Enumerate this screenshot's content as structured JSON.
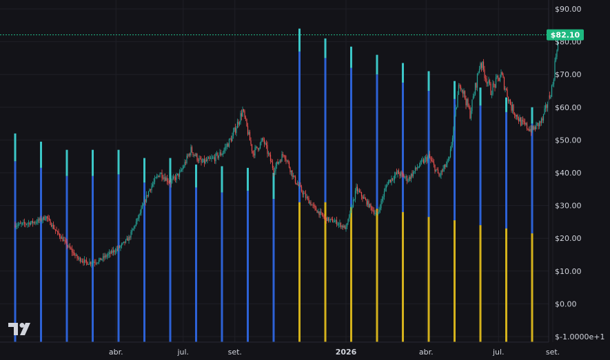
{
  "chart_data": {
    "type": "bar",
    "title": "",
    "xlabel": "",
    "ylabel": "",
    "ylim": [
      -10,
      90
    ],
    "y_ticks": [
      -10,
      0,
      10,
      20,
      30,
      40,
      50,
      60,
      70,
      80,
      90
    ],
    "y_tick_labels": [
      "$-1.0000e+1",
      "$0.00",
      "$10.00",
      "$20.00",
      "$30.00",
      "$40.00",
      "$50.00",
      "$60.00",
      "$70.00",
      "$80.00",
      "$90.00"
    ],
    "x_tick_labels": [
      "abr.",
      "jul.",
      "set.",
      "2026",
      "abr.",
      "jul.",
      "set."
    ],
    "x_tick_weeks": [
      19.5,
      32.5,
      42.5,
      64,
      79.5,
      93.5,
      104
    ],
    "week_range": [
      0,
      109
    ],
    "last_price": 82.1,
    "last_price_label": "$82.10",
    "colors": {
      "background": "#131318",
      "bar_blue": "#2d62d6",
      "bar_cyan": "#3cc8c8",
      "bar_gold": "#d4b21c",
      "candle_up": "#26a69a",
      "candle_down": "#ef5350",
      "price_line": "#22c08a",
      "grid": "#1f1f26"
    },
    "bar_series": [
      {
        "week": 0,
        "blue_top": 43.5,
        "cyan_top": 52,
        "gold_top": null
      },
      {
        "week": 5,
        "blue_top": 41.5,
        "cyan_top": 49.5,
        "gold_top": null
      },
      {
        "week": 10,
        "blue_top": 39,
        "cyan_top": 47,
        "gold_top": null
      },
      {
        "week": 15,
        "blue_top": 39,
        "cyan_top": 47,
        "gold_top": null
      },
      {
        "week": 20,
        "blue_top": 39.5,
        "cyan_top": 47,
        "gold_top": null
      },
      {
        "week": 25,
        "blue_top": 37,
        "cyan_top": 44.5,
        "gold_top": null
      },
      {
        "week": 30,
        "blue_top": 37,
        "cyan_top": 44.5,
        "gold_top": null
      },
      {
        "week": 35,
        "blue_top": 35.5,
        "cyan_top": 42.5,
        "gold_top": null
      },
      {
        "week": 40,
        "blue_top": 34,
        "cyan_top": 42,
        "gold_top": null
      },
      {
        "week": 45,
        "blue_top": 34.5,
        "cyan_top": 41.5,
        "gold_top": null
      },
      {
        "week": 50,
        "blue_top": 32,
        "cyan_top": 40,
        "gold_top": null
      },
      {
        "week": 55,
        "blue_top": 77,
        "cyan_top": 84,
        "gold_top": 31
      },
      {
        "week": 60,
        "blue_top": 75,
        "cyan_top": 81,
        "gold_top": 31
      },
      {
        "week": 65,
        "blue_top": 72,
        "cyan_top": 78.5,
        "gold_top": 29.5
      },
      {
        "week": 70,
        "blue_top": 70,
        "cyan_top": 76,
        "gold_top": 29
      },
      {
        "week": 75,
        "blue_top": 67.5,
        "cyan_top": 73.5,
        "gold_top": 28
      },
      {
        "week": 80,
        "blue_top": 65,
        "cyan_top": 71,
        "gold_top": 26.5
      },
      {
        "week": 85,
        "blue_top": 62.5,
        "cyan_top": 68,
        "gold_top": 25.5
      },
      {
        "week": 90,
        "blue_top": 60.5,
        "cyan_top": 66,
        "gold_top": 24
      },
      {
        "week": 95,
        "blue_top": 58.5,
        "cyan_top": 63,
        "gold_top": 23
      },
      {
        "week": 100,
        "blue_top": 55,
        "cyan_top": 60,
        "gold_top": 21.5
      }
    ],
    "price_path": [
      [
        0,
        24
      ],
      [
        2,
        24.5
      ],
      [
        4,
        25
      ],
      [
        6,
        26.5
      ],
      [
        8,
        22
      ],
      [
        10,
        18
      ],
      [
        12,
        14
      ],
      [
        14,
        12.5
      ],
      [
        16,
        13
      ],
      [
        18,
        15
      ],
      [
        20,
        17
      ],
      [
        22,
        20
      ],
      [
        24,
        27
      ],
      [
        26,
        35
      ],
      [
        28,
        40
      ],
      [
        30,
        37
      ],
      [
        32,
        40
      ],
      [
        34,
        47
      ],
      [
        36,
        43
      ],
      [
        38,
        44
      ],
      [
        40,
        46
      ],
      [
        42,
        51
      ],
      [
        44,
        59
      ],
      [
        46,
        46
      ],
      [
        48,
        50
      ],
      [
        50,
        41
      ],
      [
        52,
        46
      ],
      [
        54,
        38
      ],
      [
        56,
        33
      ],
      [
        58,
        29
      ],
      [
        60,
        26
      ],
      [
        62,
        25
      ],
      [
        64,
        23
      ],
      [
        66,
        35
      ],
      [
        68,
        31
      ],
      [
        70,
        27
      ],
      [
        72,
        37
      ],
      [
        74,
        40
      ],
      [
        76,
        38
      ],
      [
        78,
        42
      ],
      [
        80,
        45
      ],
      [
        82,
        39
      ],
      [
        84,
        44
      ],
      [
        86,
        68
      ],
      [
        88,
        58
      ],
      [
        90,
        74
      ],
      [
        92,
        65
      ],
      [
        94,
        70
      ],
      [
        96,
        60
      ],
      [
        98,
        55
      ],
      [
        100,
        53
      ],
      [
        102,
        56
      ],
      [
        104,
        67
      ],
      [
        105,
        82.1
      ]
    ]
  }
}
